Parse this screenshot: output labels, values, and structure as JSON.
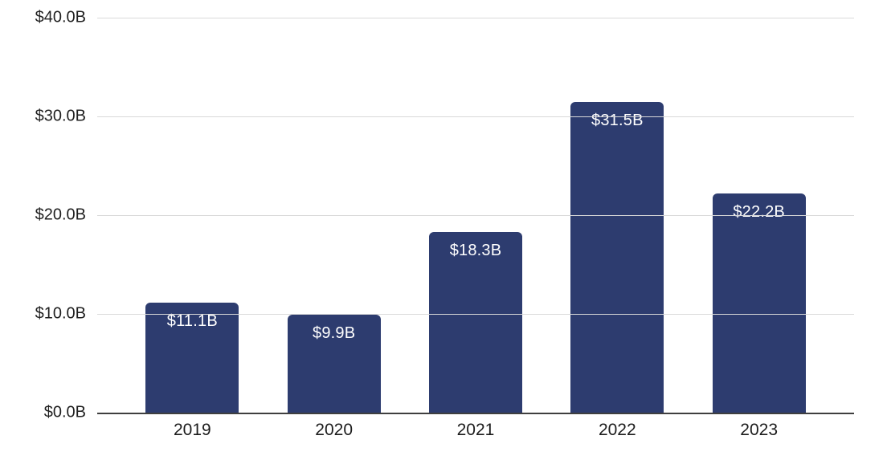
{
  "chart_data": {
    "type": "bar",
    "title": "",
    "xlabel": "",
    "ylabel": "",
    "categories": [
      "2019",
      "2020",
      "2021",
      "2022",
      "2023"
    ],
    "values": [
      11.1,
      9.9,
      18.3,
      31.5,
      22.2
    ],
    "bar_labels": [
      "$11.1B",
      "$9.9B",
      "$18.3B",
      "$31.5B",
      "$22.2B"
    ],
    "ytick_values": [
      0,
      10,
      20,
      30,
      40
    ],
    "ytick_labels": [
      "$0.0B",
      "$10.0B",
      "$20.0B",
      "$30.0B",
      "$40.0B"
    ],
    "ylim": [
      0,
      40
    ],
    "grid": true,
    "legend_position": "none",
    "colors": {
      "bar": "#2d3c6f",
      "bar_label_text": "#ffffff",
      "gridline": "#d9d9d9",
      "axis_line": "#3f3f3f",
      "tick_text": "#1f1f1f",
      "background": "#ffffff"
    }
  }
}
